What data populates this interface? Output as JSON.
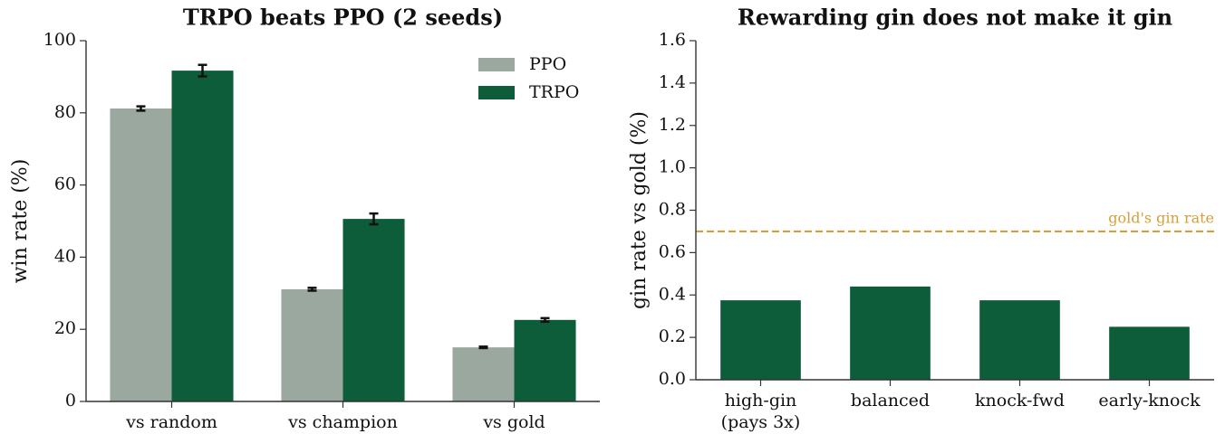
{
  "chart_data": [
    {
      "type": "bar",
      "title": "TRPO beats PPO (2 seeds)",
      "ylabel": "win rate (%)",
      "categories": [
        "vs random",
        "vs champion",
        "vs gold"
      ],
      "series": [
        {
          "name": "PPO",
          "color": "#9ba8a0",
          "values": [
            81.2,
            31.1,
            15.0
          ],
          "errors": [
            0.6,
            0.4,
            0.2
          ]
        },
        {
          "name": "TRPO",
          "color": "#0d5c3a",
          "values": [
            91.7,
            50.6,
            22.6
          ],
          "errors": [
            1.6,
            1.5,
            0.5
          ]
        }
      ],
      "ylim": [
        0,
        100
      ],
      "yticks": [
        0,
        20,
        40,
        60,
        80,
        100
      ],
      "legend": "upper right"
    },
    {
      "type": "bar",
      "title": "Rewarding gin does not make it gin",
      "ylabel": "gin rate vs gold (%)",
      "categories": [
        "high-gin\n(pays 3x)",
        "balanced",
        "knock-fwd",
        "early-knock"
      ],
      "series": [
        {
          "color": "#0d5c3a",
          "values": [
            0.375,
            0.44,
            0.375,
            0.25
          ]
        }
      ],
      "ylim": [
        0,
        1.6
      ],
      "yticks": [
        {
          "value": 0,
          "label": "0.0"
        },
        0.2,
        0.4,
        0.6,
        0.8,
        {
          "value": 1,
          "label": "1.0"
        },
        1.2,
        1.4,
        1.6
      ],
      "reference_line": {
        "value": 0.7,
        "label": "gold's gin rate",
        "color": "#d4a03a"
      }
    }
  ]
}
